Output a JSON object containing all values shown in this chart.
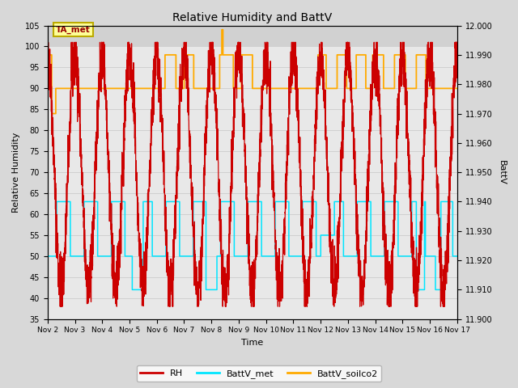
{
  "title": "Relative Humidity and BattV",
  "xlabel": "Time",
  "ylabel_left": "Relative Humidity",
  "ylabel_right": "BattV",
  "ylim_left": [
    35,
    105
  ],
  "ylim_right": [
    11.9,
    12.0
  ],
  "yticks_left": [
    35,
    40,
    45,
    50,
    55,
    60,
    65,
    70,
    75,
    80,
    85,
    90,
    95,
    100,
    105
  ],
  "yticks_right_vals": [
    11.9,
    11.91,
    11.92,
    11.93,
    11.94,
    11.95,
    11.96,
    11.97,
    11.98,
    11.99,
    12.0
  ],
  "xtick_labels": [
    "Nov 2",
    "Nov 3",
    "Nov 4",
    "Nov 5",
    "Nov 6",
    "Nov 7",
    "Nov 8",
    "Nov 9",
    "Nov 10",
    "Nov 11",
    "Nov 12",
    "Nov 13",
    "Nov 14",
    "Nov 15",
    "Nov 16",
    "Nov 17"
  ],
  "fig_bg_color": "#d8d8d8",
  "plot_bg_color": "#e8e8e8",
  "plot_bg_top_color": "#d8d8d8",
  "rh_color": "#cc0000",
  "battv_met_color": "#00e5ff",
  "battv_soilco2_color": "#ffaa00",
  "annotation_text": "TA_met",
  "annotation_box_color": "#ffff99",
  "annotation_border_color": "#bbaa00",
  "grid_color": "#cccccc",
  "n_days": 15,
  "rh_seed": 42,
  "rh_noise_scale": 3.0,
  "rh_peak_high": 95,
  "rh_peak_low": 40,
  "battv_met_high": 63,
  "battv_met_low": 50,
  "battv_met_drop": 42,
  "battv_soilco2_base": 90,
  "battv_soilco2_high": 98,
  "battv_soilco2_spike": 104
}
